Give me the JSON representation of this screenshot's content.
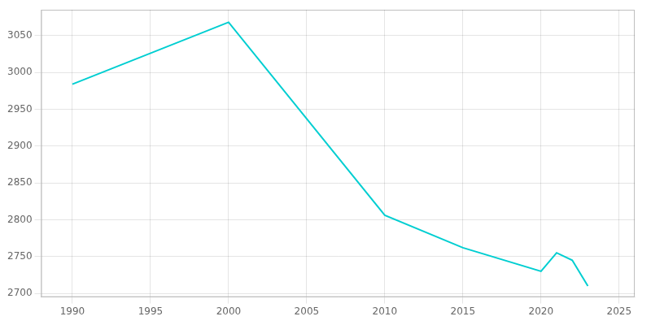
{
  "chart_data": {
    "type": "line",
    "x": [
      1990,
      2000,
      2010,
      2015,
      2020,
      2021,
      2022,
      2023
    ],
    "values": [
      2984,
      3068,
      2806,
      2762,
      2730,
      2755,
      2745,
      2710
    ],
    "color": "#00CED1",
    "xlim": [
      1988,
      2026
    ],
    "ylim": [
      2695,
      3085
    ],
    "xticks": [
      1990,
      1995,
      2000,
      2005,
      2010,
      2015,
      2020,
      2025
    ],
    "yticks": [
      2700,
      2750,
      2800,
      2850,
      2900,
      2950,
      3000,
      3050
    ],
    "grid": true
  }
}
